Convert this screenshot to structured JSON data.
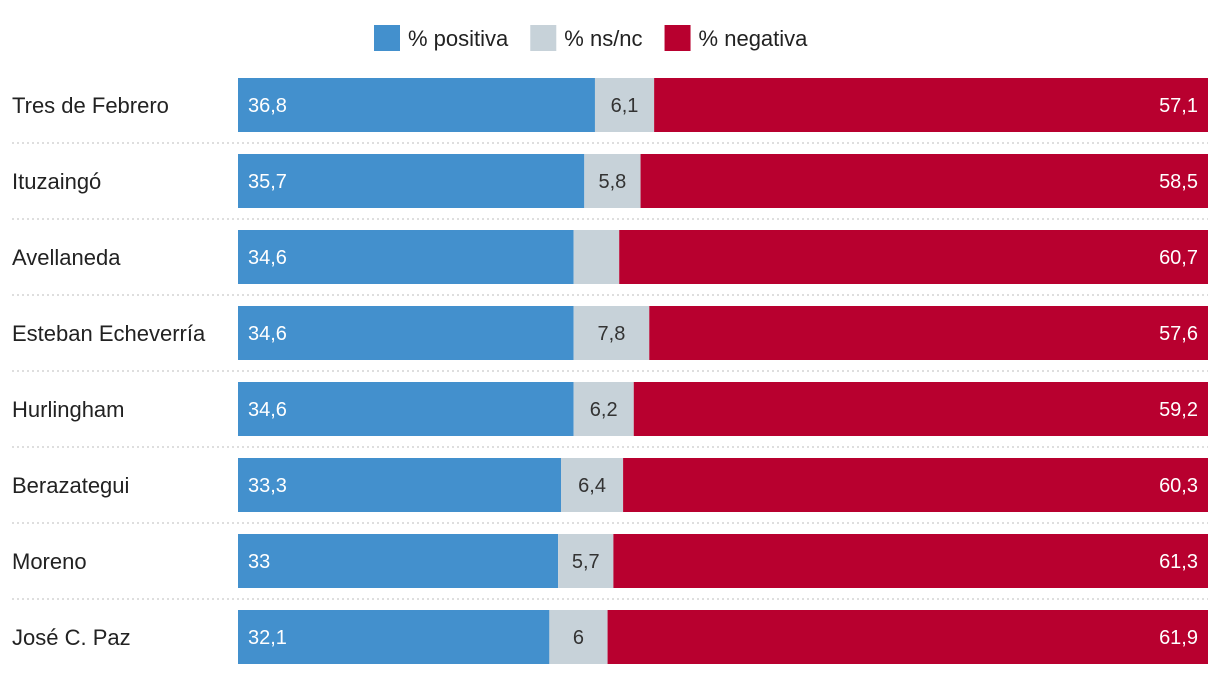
{
  "chart_data": {
    "type": "bar",
    "orientation": "horizontal",
    "stacked": true,
    "normalized_to": 100,
    "legend_position": "top-center",
    "legend": [
      {
        "name": "% positiva",
        "color": "#4390cd"
      },
      {
        "name": "% ns/nc",
        "color": "#c7d2d9"
      },
      {
        "name": "% negativa",
        "color": "#b8002f"
      }
    ],
    "categories": [
      "Tres de Febrero",
      "Ituzaingó",
      "Avellaneda",
      "Esteban Echeverría",
      "Hurlingham",
      "Berazategui",
      "Moreno",
      "José C. Paz"
    ],
    "series": [
      {
        "name": "% positiva",
        "color": "#4390cd",
        "values": [
          36.8,
          35.7,
          34.6,
          34.6,
          34.6,
          33.3,
          33,
          32.1
        ],
        "labels": [
          "36,8",
          "35,7",
          "34,6",
          "34,6",
          "34,6",
          "33,3",
          "33",
          "32,1"
        ]
      },
      {
        "name": "% ns/nc",
        "color": "#c7d2d9",
        "values": [
          6.1,
          5.8,
          4.7,
          7.8,
          6.2,
          6.4,
          5.7,
          6
        ],
        "labels": [
          "6,1",
          "5,8",
          "",
          "7,8",
          "6,2",
          "6,4",
          "5,7",
          "6"
        ]
      },
      {
        "name": "% negativa",
        "color": "#b8002f",
        "values": [
          57.1,
          58.5,
          60.7,
          57.6,
          59.2,
          60.3,
          61.3,
          61.9
        ],
        "labels": [
          "57,1",
          "58,5",
          "60,7",
          "57,6",
          "59,2",
          "60,3",
          "61,3",
          "61,9"
        ]
      }
    ]
  }
}
